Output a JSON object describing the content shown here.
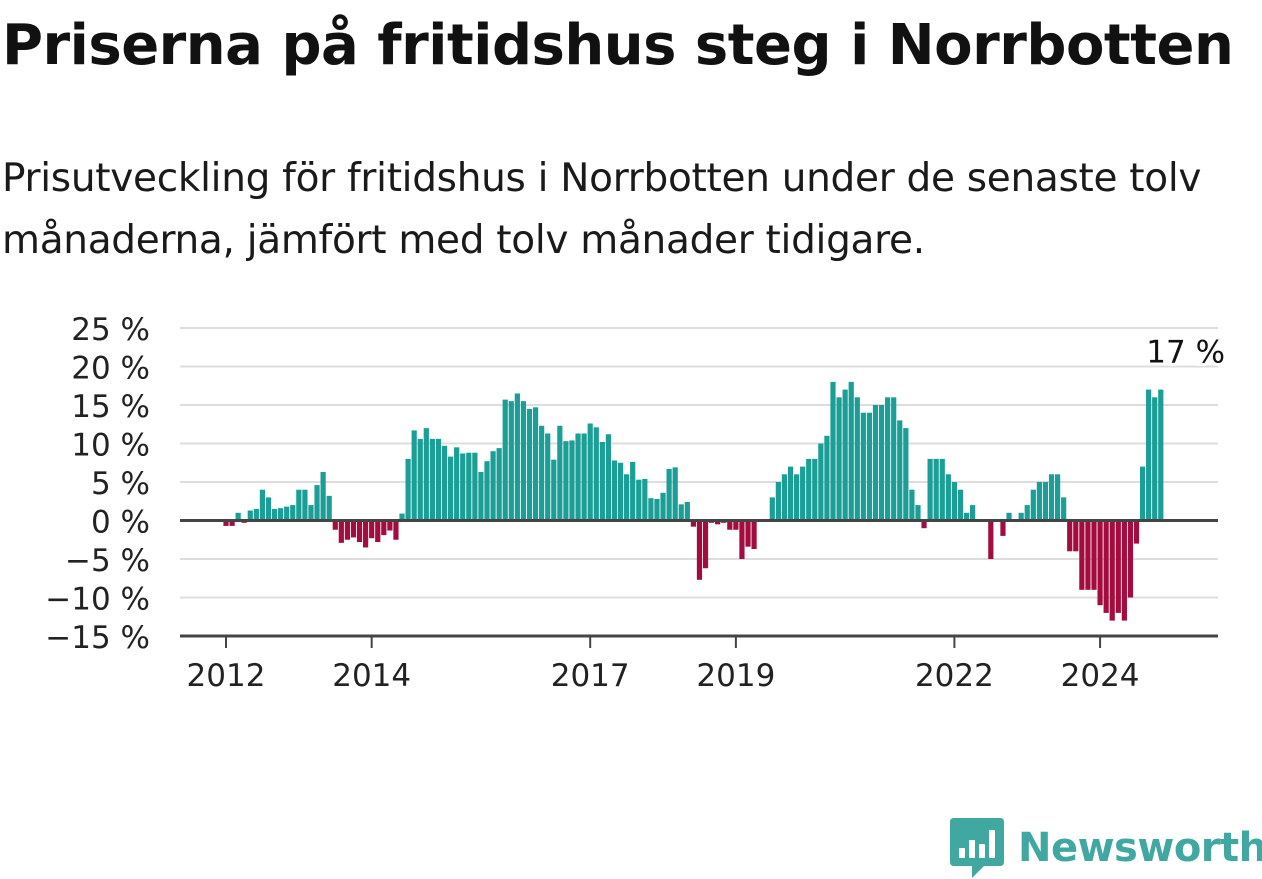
{
  "title": "Priserna på fritidshus steg i Norrbotten",
  "subtitle": "Prisutveckling för fritidshus i Norrbotten under de senaste tolv månaderna, jämfört med tolv månader tidigare.",
  "brand": {
    "name": "Newsworthy"
  },
  "colors": {
    "positive": "#1a9e96",
    "negative": "#a30c3e",
    "grid": "#dddddd",
    "axis": "#444444",
    "brand": "#40a8a0"
  },
  "chart_data": {
    "type": "bar",
    "title": "Priserna på fritidshus steg i Norrbotten",
    "ylabel": "",
    "xlabel": "",
    "ylim": [
      -15,
      25
    ],
    "yticks": [
      -15,
      -10,
      -5,
      0,
      5,
      10,
      15,
      20,
      25
    ],
    "ytick_labels": [
      "−15 %",
      "−10 %",
      "−5 %",
      "0 %",
      "5 %",
      "10 %",
      "15 %",
      "20 %",
      "25 %"
    ],
    "xtick_labels": [
      "2012",
      "2014",
      "2017",
      "2019",
      "2022",
      "2024"
    ],
    "xtick_months": [
      "2012-01",
      "2014-01",
      "2017-01",
      "2019-01",
      "2022-01",
      "2024-01"
    ],
    "start_month": "2012-01",
    "values": [
      -0.7,
      -0.7,
      1.0,
      -0.3,
      1.3,
      1.5,
      4.0,
      3.0,
      1.5,
      1.6,
      1.8,
      2.0,
      4.0,
      4.0,
      2.0,
      4.6,
      6.3,
      3.2,
      -1.2,
      -2.9,
      -2.5,
      -2.2,
      -2.8,
      -3.5,
      -2.3,
      -2.8,
      -1.9,
      -1.3,
      -2.5,
      0.9,
      8.0,
      11.7,
      10.6,
      12.0,
      10.6,
      10.6,
      9.7,
      8.3,
      9.5,
      8.7,
      8.8,
      8.8,
      6.3,
      7.7,
      9.0,
      9.4,
      15.7,
      15.5,
      16.5,
      15.5,
      14.5,
      14.7,
      12.3,
      11.3,
      7.9,
      12.3,
      10.3,
      10.4,
      11.3,
      11.3,
      12.6,
      12.1,
      10.2,
      11.2,
      7.8,
      7.5,
      6.0,
      7.6,
      5.3,
      5.4,
      2.9,
      2.8,
      3.6,
      6.7,
      6.9,
      2.1,
      2.4,
      -0.8,
      -7.7,
      -6.2,
      -0.3,
      -0.5,
      -0.3,
      -1.2,
      -1.2,
      -5.0,
      -3.4,
      -3.7,
      0.0,
      0.0,
      3.0,
      5.0,
      6.0,
      7.0,
      6.0,
      7.0,
      8.0,
      8.0,
      10.0,
      11.0,
      18.0,
      16.0,
      17.0,
      18.0,
      16.0,
      14.0,
      14.0,
      15.0,
      15.0,
      16.0,
      16.0,
      13.0,
      12.0,
      4.0,
      2.0,
      -1.0,
      8.0,
      8.0,
      8.0,
      6.0,
      5.0,
      4.0,
      1.0,
      2.0,
      0.0,
      0.0,
      -5.0,
      0.0,
      -2.0,
      1.0,
      0.0,
      1.0,
      2.0,
      4.0,
      5.0,
      5.0,
      6.0,
      6.0,
      3.0,
      -4.0,
      -4.0,
      -9.0,
      -9.0,
      -9.0,
      -11.0,
      -12.0,
      -13.0,
      -12.0,
      -13.0,
      -10.0,
      -3.0,
      7.0,
      17.0,
      16.0,
      17.0
    ],
    "annotations": [
      {
        "label": "17 %",
        "month": "2025-03"
      }
    ]
  }
}
